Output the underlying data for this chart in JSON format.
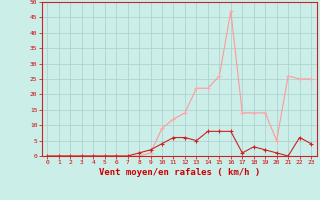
{
  "x": [
    0,
    1,
    2,
    3,
    4,
    5,
    6,
    7,
    8,
    9,
    10,
    11,
    12,
    13,
    14,
    15,
    16,
    17,
    18,
    19,
    20,
    21,
    22,
    23
  ],
  "y_mean": [
    0,
    0,
    0,
    0,
    0,
    0,
    0,
    0,
    1,
    2,
    4,
    6,
    6,
    5,
    8,
    8,
    8,
    1,
    3,
    2,
    1,
    0,
    6,
    4
  ],
  "y_gust": [
    0,
    0,
    0,
    0,
    0,
    0,
    0,
    0,
    0,
    1,
    9,
    12,
    14,
    22,
    22,
    26,
    47,
    14,
    14,
    14,
    5,
    26,
    25,
    25
  ],
  "line_color_mean": "#cc2222",
  "line_color_gust": "#ff9999",
  "marker_color_mean": "#cc2222",
  "marker_color_gust": "#ffaaaa",
  "bg_color": "#cceee8",
  "grid_color": "#aacccc",
  "xlabel": "Vent moyen/en rafales ( km/h )",
  "xlabel_color": "#cc0000",
  "tick_color": "#cc0000",
  "ylim": [
    0,
    50
  ],
  "yticks": [
    0,
    5,
    10,
    15,
    20,
    25,
    30,
    35,
    40,
    45,
    50
  ],
  "xticks": [
    0,
    1,
    2,
    3,
    4,
    5,
    6,
    7,
    8,
    9,
    10,
    11,
    12,
    13,
    14,
    15,
    16,
    17,
    18,
    19,
    20,
    21,
    22,
    23
  ]
}
